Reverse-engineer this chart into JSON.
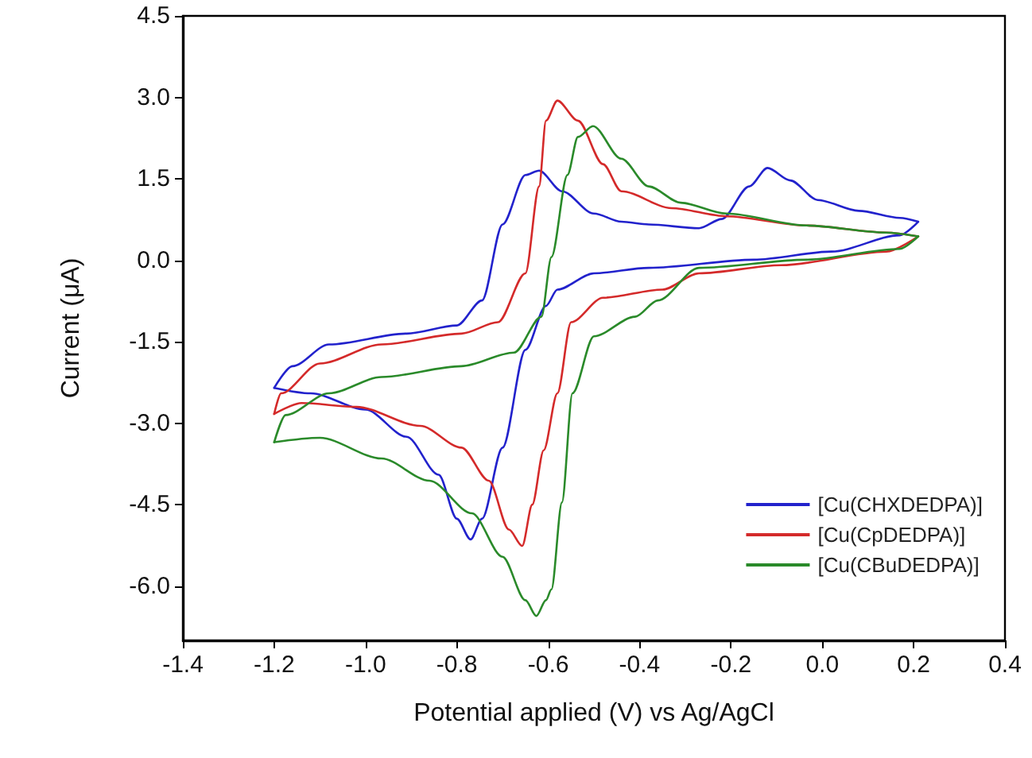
{
  "chart_data": {
    "type": "line",
    "xlabel": "Potential applied (V) vs Ag/AgCl",
    "ylabel": "Current (μA)",
    "xlim": [
      -1.4,
      0.4
    ],
    "xticks": [
      {
        "value": -1.4,
        "label": "-1.4"
      },
      {
        "value": -1.2,
        "label": "-1.2"
      },
      {
        "value": -1.0,
        "label": "-1.0"
      },
      {
        "value": -0.8,
        "label": "-0.8"
      },
      {
        "value": -0.6,
        "label": "-0.6"
      },
      {
        "value": -0.4,
        "label": "-0.4"
      },
      {
        "value": -0.2,
        "label": "-0.2"
      },
      {
        "value": 0,
        "label": "0.0"
      },
      {
        "value": 0.2,
        "label": "0.2"
      },
      {
        "value": 0.4,
        "label": "0.4"
      }
    ],
    "ylim": [
      -7,
      4.5
    ],
    "yticks": [
      {
        "value": -6,
        "label": "-6.0"
      },
      {
        "value": -4.5,
        "label": "-4.5"
      },
      {
        "value": -3,
        "label": "-3.0"
      },
      {
        "value": -1.5,
        "label": "-1.5"
      },
      {
        "value": 0,
        "label": "0.0"
      },
      {
        "value": 1.5,
        "label": "1.5"
      },
      {
        "value": 3,
        "label": "3.0"
      },
      {
        "value": 4.5,
        "label": "4.5"
      }
    ],
    "legend": "bottom right",
    "marker": "none",
    "line_style": "solid",
    "series": [
      {
        "name": "[Cu(CHXDEDPA)]",
        "color": "#2222cc",
        "x": [
          -1.2,
          -1.16,
          -1.08,
          -0.91,
          -0.8,
          -0.745,
          -0.7,
          -0.65,
          -0.62,
          -0.57,
          -0.5,
          -0.44,
          -0.38,
          -0.27,
          -0.22,
          -0.16,
          -0.12,
          -0.07,
          -0.01,
          0.08,
          0.17,
          0.21
        ],
        "values": [
          -2.35,
          -1.95,
          -1.55,
          -1.35,
          -1.2,
          -0.74,
          0.66,
          1.57,
          1.65,
          1.27,
          0.86,
          0.71,
          0.66,
          0.59,
          0.76,
          1.36,
          1.7,
          1.47,
          1.11,
          0.91,
          0.78,
          0.71
        ]
      },
      {
        "color": "#2222cc",
        "x": [
          -1.2,
          -1.12,
          -1.0,
          -0.91,
          -0.84,
          -0.8,
          -0.77,
          -0.745,
          -0.7,
          -0.65,
          -0.605,
          -0.58,
          -0.5,
          -0.38,
          -0.15,
          0.02,
          0.17,
          0.21
        ],
        "values": [
          -2.35,
          -2.45,
          -2.75,
          -3.25,
          -3.95,
          -4.76,
          -5.14,
          -4.76,
          -3.45,
          -1.65,
          -0.84,
          -0.54,
          -0.24,
          -0.14,
          0.01,
          0.16,
          0.46,
          0.71
        ]
      },
      {
        "name": "[Cu(CpDEDPA)]",
        "color": "#d42a2a",
        "x": [
          -1.2,
          -1.185,
          -1.1,
          -0.965,
          -0.79,
          -0.71,
          -0.65,
          -0.62,
          -0.605,
          -0.58,
          -0.535,
          -0.48,
          -0.44,
          -0.33,
          -0.21,
          -0.035,
          0.14,
          0.21
        ],
        "values": [
          -2.83,
          -2.45,
          -1.9,
          -1.55,
          -1.35,
          -1.14,
          -0.24,
          1.36,
          2.57,
          2.94,
          2.57,
          1.77,
          1.27,
          0.96,
          0.81,
          0.64,
          0.51,
          0.44
        ]
      },
      {
        "color": "#d42a2a",
        "x": [
          -1.2,
          -1.14,
          -1.02,
          -0.88,
          -0.79,
          -0.73,
          -0.686,
          -0.657,
          -0.635,
          -0.61,
          -0.58,
          -0.55,
          -0.48,
          -0.35,
          -0.27,
          -0.09,
          0.14,
          0.21
        ],
        "values": [
          -2.83,
          -2.63,
          -2.7,
          -3.05,
          -3.45,
          -4.06,
          -4.96,
          -5.26,
          -4.5,
          -3.5,
          -2.45,
          -1.14,
          -0.69,
          -0.54,
          -0.24,
          -0.09,
          0.16,
          0.44
        ]
      },
      {
        "name": "[Cu(CBuDEDPA)]",
        "color": "#2a8a2a",
        "x": [
          -1.2,
          -1.175,
          -1.08,
          -0.965,
          -0.79,
          -0.675,
          -0.615,
          -0.593,
          -0.558,
          -0.535,
          -0.502,
          -0.44,
          -0.38,
          -0.31,
          -0.21,
          -0.035,
          0.14,
          0.21
        ],
        "values": [
          -3.35,
          -2.85,
          -2.45,
          -2.15,
          -1.95,
          -1.7,
          -1.04,
          0.06,
          1.57,
          2.27,
          2.47,
          1.87,
          1.36,
          1.06,
          0.86,
          0.64,
          0.51,
          0.44
        ]
      },
      {
        "color": "#2a8a2a",
        "x": [
          -1.2,
          -1.1,
          -0.965,
          -0.86,
          -0.767,
          -0.7,
          -0.65,
          -0.626,
          -0.605,
          -0.593,
          -0.57,
          -0.547,
          -0.5,
          -0.41,
          -0.36,
          -0.27,
          -0.035,
          0.17,
          0.21
        ],
        "values": [
          -3.35,
          -3.27,
          -3.65,
          -4.06,
          -4.66,
          -5.46,
          -6.26,
          -6.55,
          -6.26,
          -6.06,
          -4.46,
          -2.45,
          -1.4,
          -1.04,
          -0.74,
          -0.14,
          0.01,
          0.21,
          0.44
        ]
      }
    ]
  }
}
